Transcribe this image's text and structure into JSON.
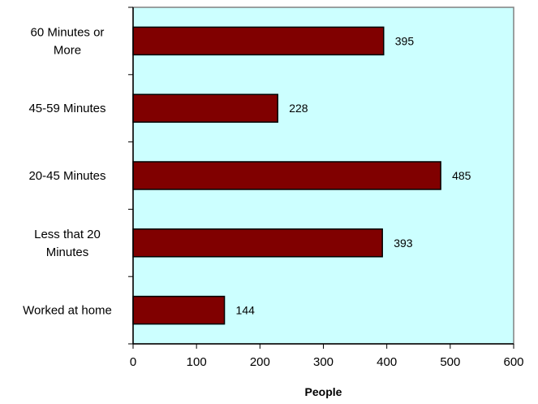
{
  "chart_data": {
    "type": "bar",
    "orientation": "horizontal",
    "categories": [
      [
        "60 Minutes or",
        "More"
      ],
      [
        "45-59 Minutes"
      ],
      [
        "20-45 Minutes"
      ],
      [
        "Less that 20",
        "Minutes"
      ],
      [
        "Worked at home"
      ]
    ],
    "values": [
      395,
      228,
      485,
      393,
      144
    ],
    "data_labels": [
      "395",
      "228",
      "485",
      "393",
      "144"
    ],
    "xlabel": "People",
    "xlim": [
      0,
      600
    ],
    "xticks": [
      "0",
      "100",
      "200",
      "300",
      "400",
      "500",
      "600"
    ],
    "grid": false,
    "legend": "none",
    "colors": {
      "bar_fill": "#800000",
      "bar_stroke": "#000000",
      "plot_background": "#ccffff",
      "plot_border": "#808080"
    }
  }
}
